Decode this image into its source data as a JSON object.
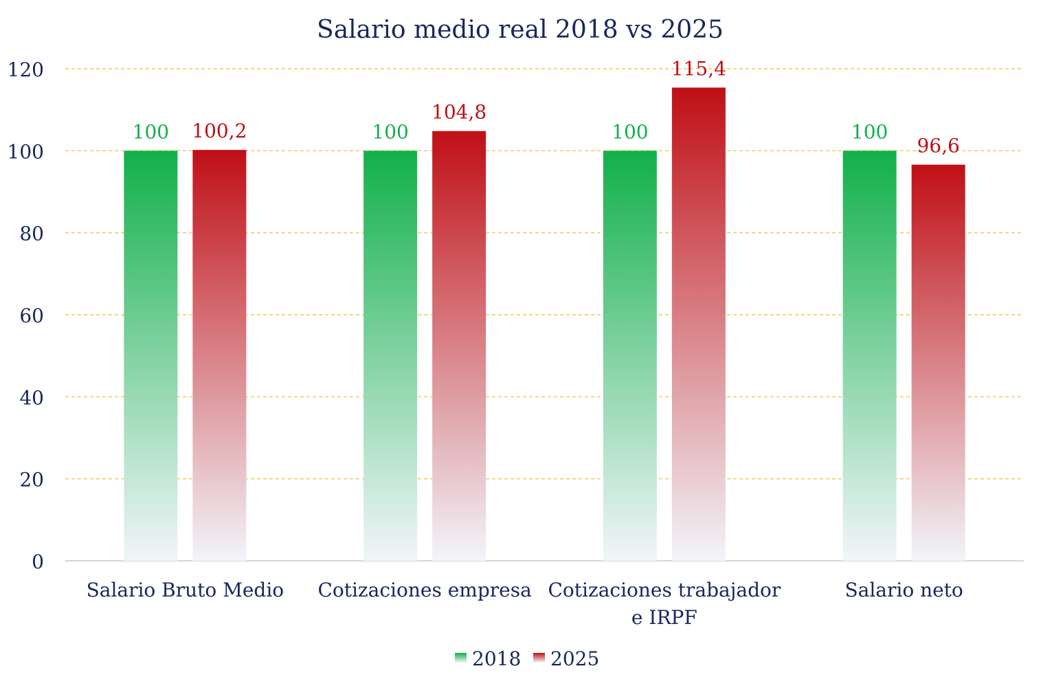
{
  "colors": {
    "title": "#17275e",
    "axis_text": "#17275e",
    "grid": "#f2c94c",
    "axis_line": "#c8c8c8",
    "series_2018": "#12b04a",
    "series_2025": "#c00f16",
    "bar_fade": "#f2f5fa"
  },
  "chart_data": {
    "type": "bar",
    "title": "Salario medio real 2018 vs 2025",
    "xlabel": "",
    "ylabel": "",
    "ylim": [
      0,
      120
    ],
    "yticks": [
      0,
      20,
      40,
      60,
      80,
      100,
      120
    ],
    "categories": [
      [
        "Salario Bruto Medio"
      ],
      [
        "Cotizaciones empresa"
      ],
      [
        "Cotizaciones trabajador",
        "e IRPF"
      ],
      [
        "Salario neto"
      ]
    ],
    "series": [
      {
        "name": "2018",
        "values": [
          100,
          100,
          100,
          100
        ],
        "labels": [
          "100",
          "100",
          "100",
          "100"
        ]
      },
      {
        "name": "2025",
        "values": [
          100.2,
          104.8,
          115.4,
          96.6
        ],
        "labels": [
          "100,2",
          "104,8",
          "115,4",
          "96,6"
        ]
      }
    ],
    "grid": true,
    "legend_position": "bottom"
  }
}
